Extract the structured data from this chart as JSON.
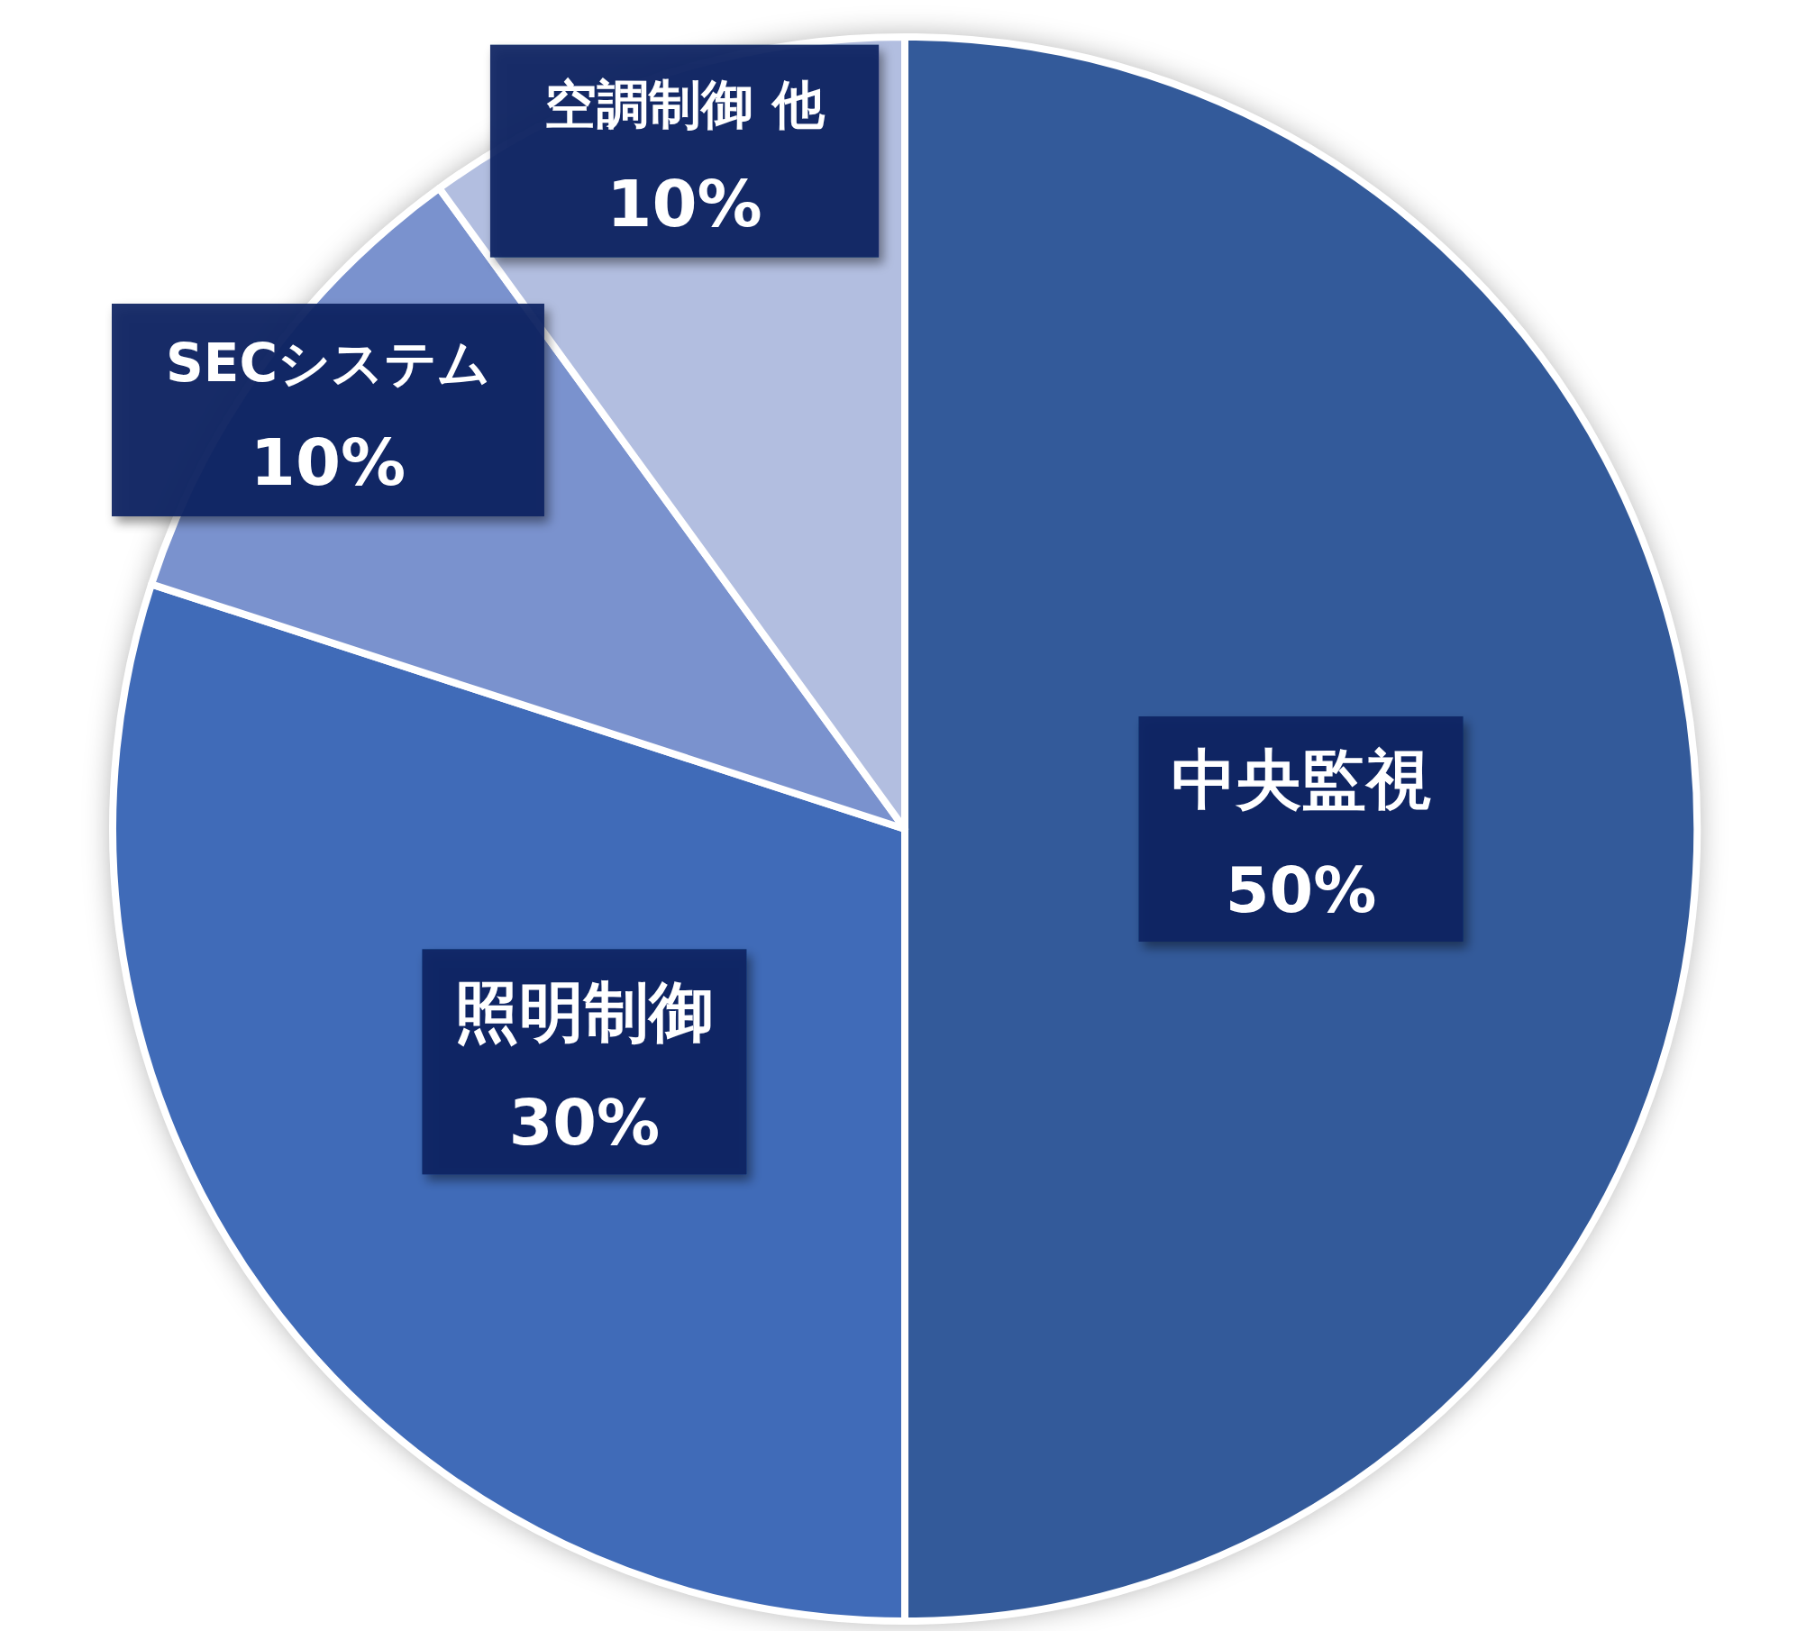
{
  "chart_data": {
    "type": "pie",
    "categories": [
      "中央監視",
      "照明制御",
      "SECシステム",
      "空調制御 他"
    ],
    "values": [
      50,
      30,
      10,
      10
    ],
    "colors": [
      "#335a9a",
      "#406bb8",
      "#7a92ce",
      "#b2bee0"
    ],
    "value_labels": [
      "50%",
      "30%",
      "10%",
      "10%"
    ]
  }
}
